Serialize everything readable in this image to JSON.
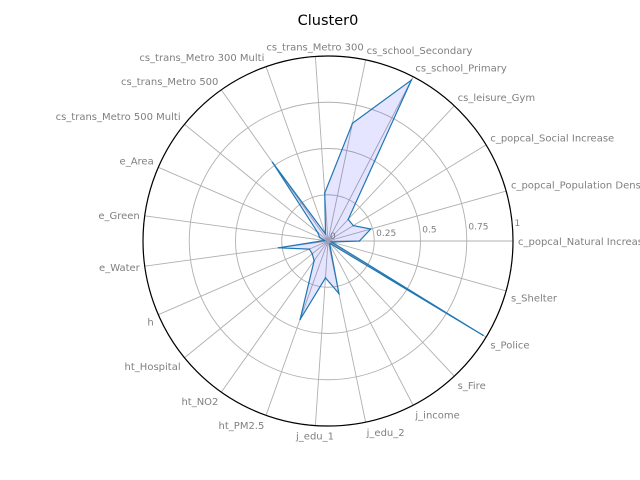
{
  "chart_data": {
    "type": "radar",
    "title": "Cluster0",
    "categories": [
      "c_popcal_Natural Increase",
      "c_popcal_Population Density",
      "c_popcal_Social Increase",
      "cs_leisure_Gym",
      "cs_school_Primary",
      "cs_school_Secondary",
      "cs_trans_Metro 300",
      "cs_trans_Metro 300 Multi",
      "cs_trans_Metro 500",
      "cs_trans_Metro 500 Multi",
      "e_Area",
      "e_Green",
      "e_Water",
      "h",
      "ht_Hospital",
      "ht_NO2",
      "ht_PM2.5",
      "j_edu_1",
      "j_edu_2",
      "j_income",
      "s_Fire",
      "s_Police",
      "s_Shelter"
    ],
    "series": [
      {
        "values": [
          0.17,
          0.24,
          0.16,
          0.16,
          0.98,
          0.65,
          0.26,
          0.04,
          0.52,
          0.07,
          0.05,
          0.02,
          0.27,
          0.11,
          0.11,
          0.13,
          0.45,
          0.2,
          0.29,
          0.02,
          0.02,
          0.98,
          0.02
        ],
        "line_color": "#1f77b4",
        "fill_color": "#0000ff",
        "fill_opacity": 0.1
      }
    ],
    "rlim": [
      0,
      1
    ],
    "rticks": [
      0,
      0.25,
      0.5,
      0.75,
      1
    ],
    "rtick_labels": [
      "0",
      "0.25",
      "0.5",
      "0.75",
      "1"
    ],
    "grid": true
  }
}
